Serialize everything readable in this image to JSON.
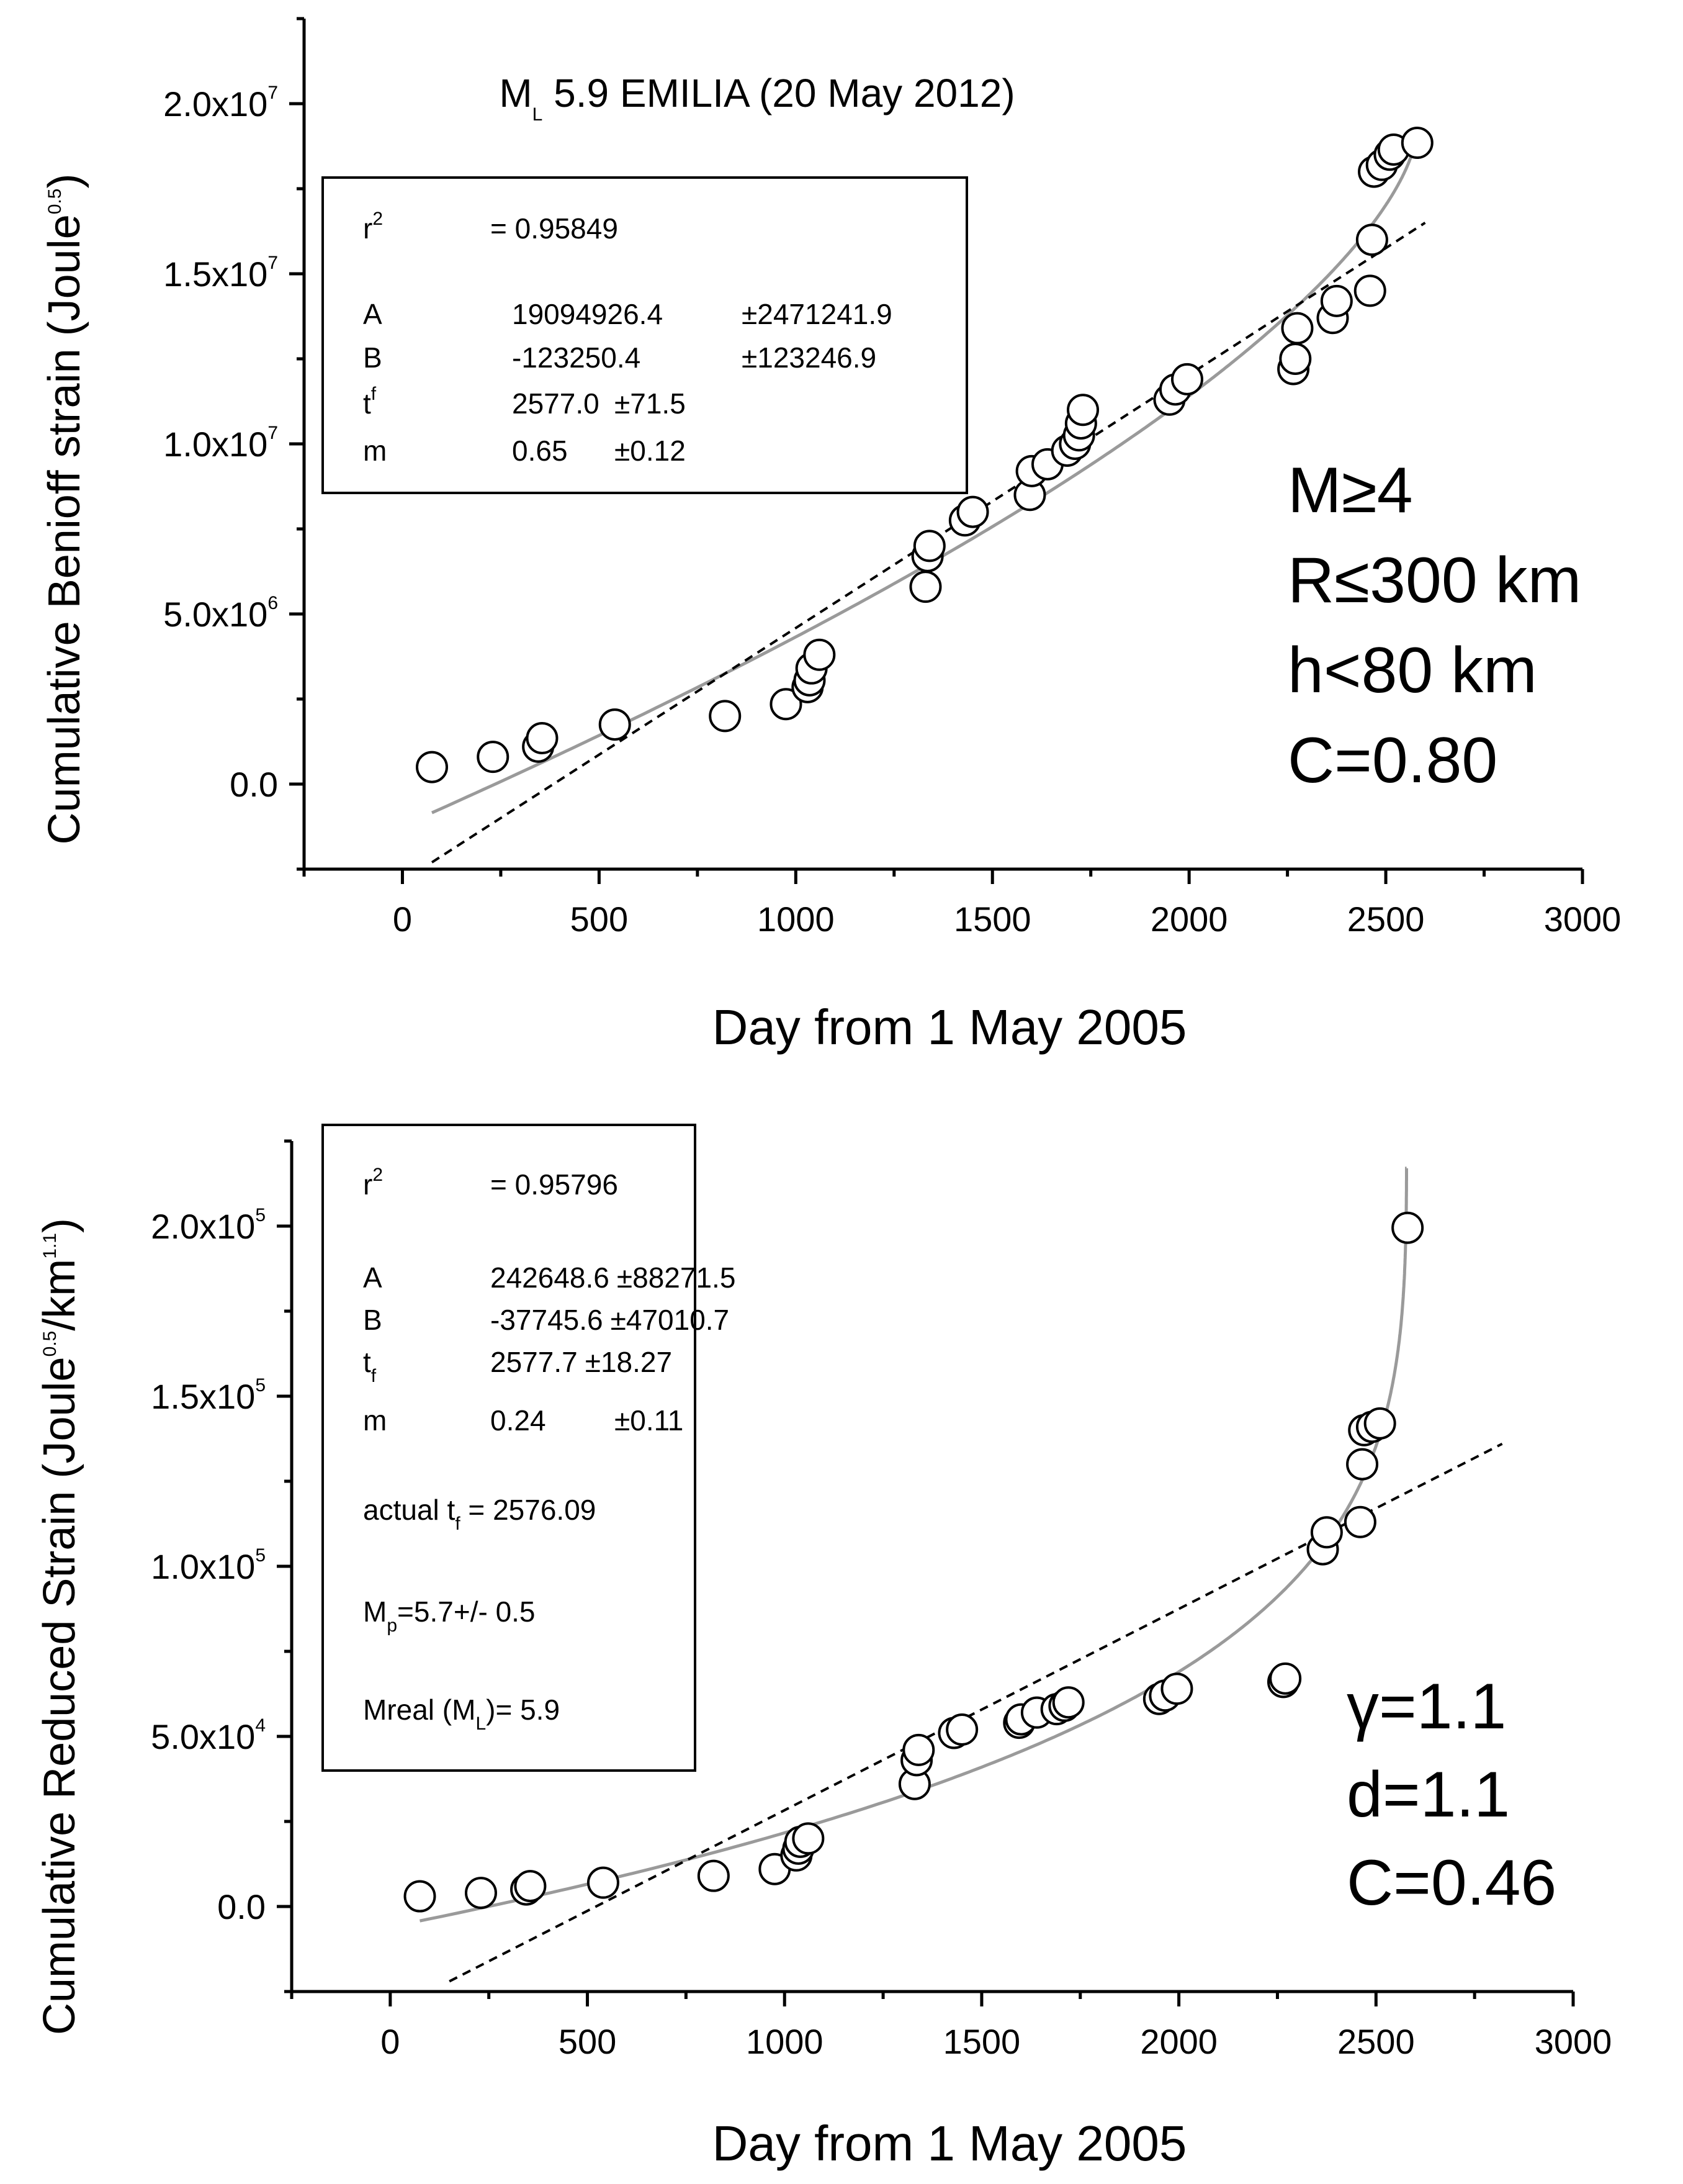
{
  "chart_data": [
    {
      "type": "scatter",
      "title": "M",
      "title_sub": "L",
      "title_rest": " 5.9 EMILIA (20 May 2012)",
      "xlabel": "Day from 1 May 2005",
      "ylabel": "Cumulative Benioff strain (Joule",
      "ylabel_sup": "0.5",
      "ylabel_tail": ")",
      "xlim": [
        -250,
        3000
      ],
      "ylim": [
        -2500000,
        22500000
      ],
      "xticks": [
        "0",
        "500",
        "1000",
        "1500",
        "2000",
        "2500",
        "3000"
      ],
      "xtick_values": [
        0,
        500,
        1000,
        1500,
        2000,
        2500,
        3000
      ],
      "yticks": [
        {
          "mant": "0.0",
          "exp": ""
        },
        {
          "mant": "5.0x10",
          "exp": "6"
        },
        {
          "mant": "1.0x10",
          "exp": "7"
        },
        {
          "mant": "1.5x10",
          "exp": "7"
        },
        {
          "mant": "2.0x10",
          "exp": "7"
        }
      ],
      "ytick_values": [
        0,
        5000000,
        10000000,
        15000000,
        20000000
      ],
      "series": [
        {
          "name": "observed",
          "kind": "points",
          "x": [
            75,
            230,
            345,
            355,
            540,
            820,
            975,
            1030,
            1035,
            1040,
            1060,
            1330,
            1335,
            1340,
            1430,
            1450,
            1595,
            1600,
            1640,
            1690,
            1710,
            1720,
            1725,
            1730,
            1950,
            1965,
            1995,
            2265,
            2270,
            2275,
            2365,
            2375,
            2460,
            2465,
            2470,
            2490,
            2510,
            2520,
            2580
          ],
          "y": [
            500000,
            800000,
            1100000,
            1350000,
            1750000,
            2000000,
            2350000,
            2850000,
            3050000,
            3400000,
            3800000,
            5800000,
            6700000,
            7000000,
            7750000,
            8000000,
            8500000,
            9200000,
            9400000,
            9800000,
            10000000,
            10250000,
            10600000,
            11000000,
            11300000,
            11600000,
            11900000,
            12200000,
            12500000,
            13400000,
            13700000,
            14200000,
            14500000,
            16000000,
            18000000,
            18200000,
            18500000,
            18650000,
            18850000
          ]
        },
        {
          "name": "power-law fit",
          "kind": "curve",
          "model": "A+B*(tf-t)^m",
          "A": 19094926.4,
          "B": -123250.4,
          "tf": 2577.0,
          "m": 0.65,
          "x_range": [
            75,
            2577
          ]
        },
        {
          "name": "linear fit",
          "kind": "dashed",
          "x": [
            75,
            2600
          ],
          "y": [
            -2300000,
            16500000
          ]
        }
      ],
      "legend": {
        "r2_label": "r",
        "r2_sup": "2",
        "r2_value": "=  0.95849",
        "rows": [
          {
            "label": "A",
            "label_mark": "",
            "value": "19094926.4",
            "err": "±2471241.9"
          },
          {
            "label": "B",
            "label_mark": "",
            "value": "-123250.4",
            "err": "±123246.9"
          },
          {
            "label": "t",
            "label_mark": "f",
            "value": "2577.0",
            "err": "±71.5"
          },
          {
            "label": "m",
            "label_mark": "",
            "value": "0.65",
            "err": "±0.12"
          }
        ]
      },
      "annotations": [
        "M≥4",
        "R≤300 km",
        "h<80 km",
        "C=0.80"
      ]
    },
    {
      "type": "scatter",
      "xlabel": "Day from 1 May 2005",
      "ylabel": "Cumulative Reduced Strain (Joule",
      "ylabel_sup1": "0.5",
      "ylabel_mid": "/km",
      "ylabel_sup2": "1.1",
      "ylabel_tail": ")",
      "xlim": [
        -250,
        3000
      ],
      "ylim": [
        -25000,
        225000
      ],
      "xticks": [
        "0",
        "500",
        "1000",
        "1500",
        "2000",
        "2500",
        "3000"
      ],
      "xtick_values": [
        0,
        500,
        1000,
        1500,
        2000,
        2500,
        3000
      ],
      "yticks": [
        {
          "mant": "0.0",
          "exp": ""
        },
        {
          "mant": "5.0x10",
          "exp": "4"
        },
        {
          "mant": "1.0x10",
          "exp": "5"
        },
        {
          "mant": "1.5x10",
          "exp": "5"
        },
        {
          "mant": "2.0x10",
          "exp": "5"
        }
      ],
      "ytick_values": [
        0,
        50000,
        100000,
        150000,
        200000
      ],
      "series": [
        {
          "name": "observed",
          "kind": "points",
          "x": [
            75,
            230,
            345,
            355,
            540,
            820,
            975,
            1030,
            1035,
            1040,
            1060,
            1330,
            1335,
            1340,
            1430,
            1450,
            1595,
            1600,
            1640,
            1690,
            1710,
            1720,
            1950,
            1965,
            1995,
            2265,
            2270,
            2365,
            2375,
            2460,
            2465,
            2470,
            2490,
            2510,
            2580
          ],
          "y": [
            3000,
            4000,
            5000,
            6000,
            7000,
            9000,
            11000,
            15000,
            17000,
            19000,
            20000,
            36000,
            43000,
            46000,
            51000,
            52000,
            54000,
            55000,
            57000,
            58000,
            59000,
            60000,
            61000,
            62000,
            64000,
            66000,
            67000,
            105000,
            110000,
            113000,
            130000,
            140000,
            141000,
            142000,
            199500
          ]
        },
        {
          "name": "power-law fit",
          "kind": "curve",
          "model": "A+B*(tf-t)^m",
          "A": 242648.6,
          "B": -37745.6,
          "tf": 2577.7,
          "m": 0.24,
          "x_range": [
            75,
            2577.5
          ]
        },
        {
          "name": "linear fit",
          "kind": "dashed",
          "x": [
            150,
            2820
          ],
          "y": [
            -22000,
            136000
          ]
        }
      ],
      "legend": {
        "r2_label": "r",
        "r2_sup": "2",
        "r2_value": "=  0.95796",
        "rows": [
          {
            "label": "A",
            "label_mark": "",
            "value": "242648.6",
            "err": "±88271.5"
          },
          {
            "label": "B",
            "label_mark": "",
            "value": "-37745.6",
            "err": "±47010.7"
          },
          {
            "label": "t",
            "label_mark": "f",
            "value": "2577.7",
            "err": "±18.27"
          },
          {
            "label": "m",
            "label_mark": "",
            "value": "0.24",
            "err": "±0.11"
          }
        ],
        "actual_prefix": "actual t",
        "actual_sub": "f",
        "actual_rest": " = 2576.09",
        "mp_prefix": "M",
        "mp_sub": "p",
        "mp_rest": "=5.7+/- 0.5",
        "mreal_prefix": "Mreal (M",
        "mreal_sub": "L",
        "mreal_rest": ")= 5.9"
      },
      "annotations": [
        "γ=1.1",
        "d=1.1",
        "C=0.46"
      ]
    }
  ]
}
